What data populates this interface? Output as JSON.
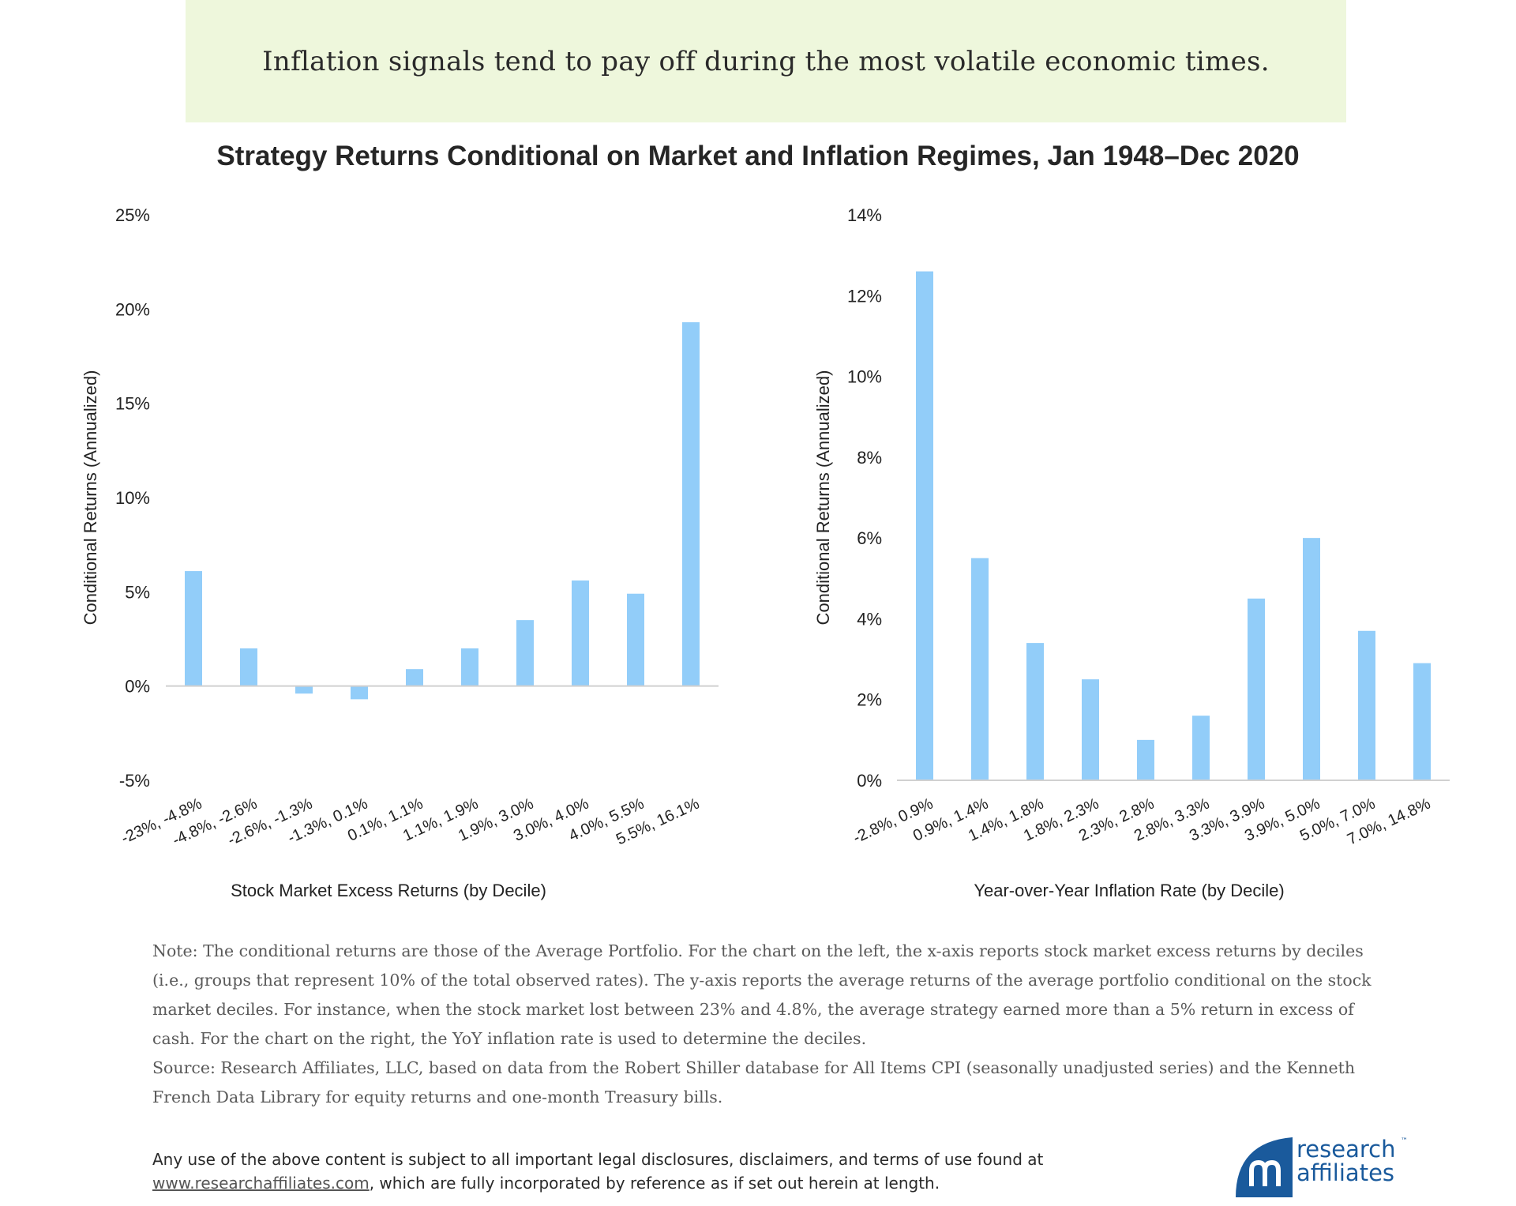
{
  "banner": {
    "text": "Inflation signals tend to pay off during the most volatile economic times."
  },
  "title": "Strategy Returns Conditional on Market and Inflation Regimes, Jan 1948–Dec 2020",
  "chart_data": [
    {
      "type": "bar",
      "categories": [
        "-23%, -4.8%",
        "-4.8%, -2.6%",
        "-2.6%, -1.3%",
        "-1.3%, 0.1%",
        "0.1%, 1.1%",
        "1.1%, 1.9%",
        "1.9%, 3.0%",
        "3.0%, 4.0%",
        "4.0%, 5.5%",
        "5.5%, 16.1%"
      ],
      "values": [
        6.1,
        2.0,
        -0.4,
        -0.7,
        0.9,
        2.0,
        3.5,
        5.6,
        4.9,
        19.3
      ],
      "xlabel": "Stock Market Excess Returns (by Decile)",
      "ylabel": "Conditional Returns (Annualized)",
      "ylim": [
        -5,
        25
      ],
      "yticks": [
        -5,
        0,
        5,
        10,
        15,
        20,
        25
      ],
      "ytick_labels": [
        "-5%",
        "0%",
        "5%",
        "10%",
        "15%",
        "20%",
        "25%"
      ],
      "bar_color": "#92cdf9",
      "grid": false
    },
    {
      "type": "bar",
      "categories": [
        "-2.8%, 0.9%",
        "0.9%, 1.4%",
        "1.4%, 1.8%",
        "1.8%, 2.3%",
        "2.3%, 2.8%",
        "2.8%, 3.3%",
        "3.3%, 3.9%",
        "3.9%, 5.0%",
        "5.0%, 7.0%",
        "7.0%, 14.8%"
      ],
      "values": [
        12.6,
        5.5,
        3.4,
        2.5,
        1.0,
        1.6,
        4.5,
        6.0,
        3.7,
        2.9
      ],
      "xlabel": "Year-over-Year Inflation Rate (by Decile)",
      "ylabel": "Conditional Returns (Annualized)",
      "ylim": [
        0,
        14
      ],
      "yticks": [
        0,
        2,
        4,
        6,
        8,
        10,
        12,
        14
      ],
      "ytick_labels": [
        "0%",
        "2%",
        "4%",
        "6%",
        "8%",
        "10%",
        "12%",
        "14%"
      ],
      "bar_color": "#92cdf9",
      "grid": false
    }
  ],
  "note": {
    "line1": "Note: The conditional returns are those of the Average Portfolio. For the chart on the left, the x-axis reports stock market excess returns by deciles (i.e., groups that represent 10% of the total observed rates). The y-axis reports the average returns of the average portfolio conditional on the stock market deciles. For instance, when the stock market lost between 23% and 4.8%, the average strategy earned more than a 5% return in excess of cash. For the chart on the right, the YoY inflation rate is used to determine the deciles.",
    "source": "Source: Research Affiliates, LLC, based on data from the Robert Shiller database for All Items CPI (seasonally unadjusted series) and the Kenneth French Data Library for equity returns and one-month Treasury bills."
  },
  "disclaimer": {
    "line1": "Any use of the above content is subject to all important legal disclosures, disclaimers, and terms of use found at",
    "link": "www.researchaffiliates.com",
    "line2_rest": ", which are fully incorporated by reference as if set out herein at length."
  },
  "logo": {
    "word1": "research",
    "word2": "affiliates",
    "tm": "™",
    "color": "#1a5a9c"
  }
}
